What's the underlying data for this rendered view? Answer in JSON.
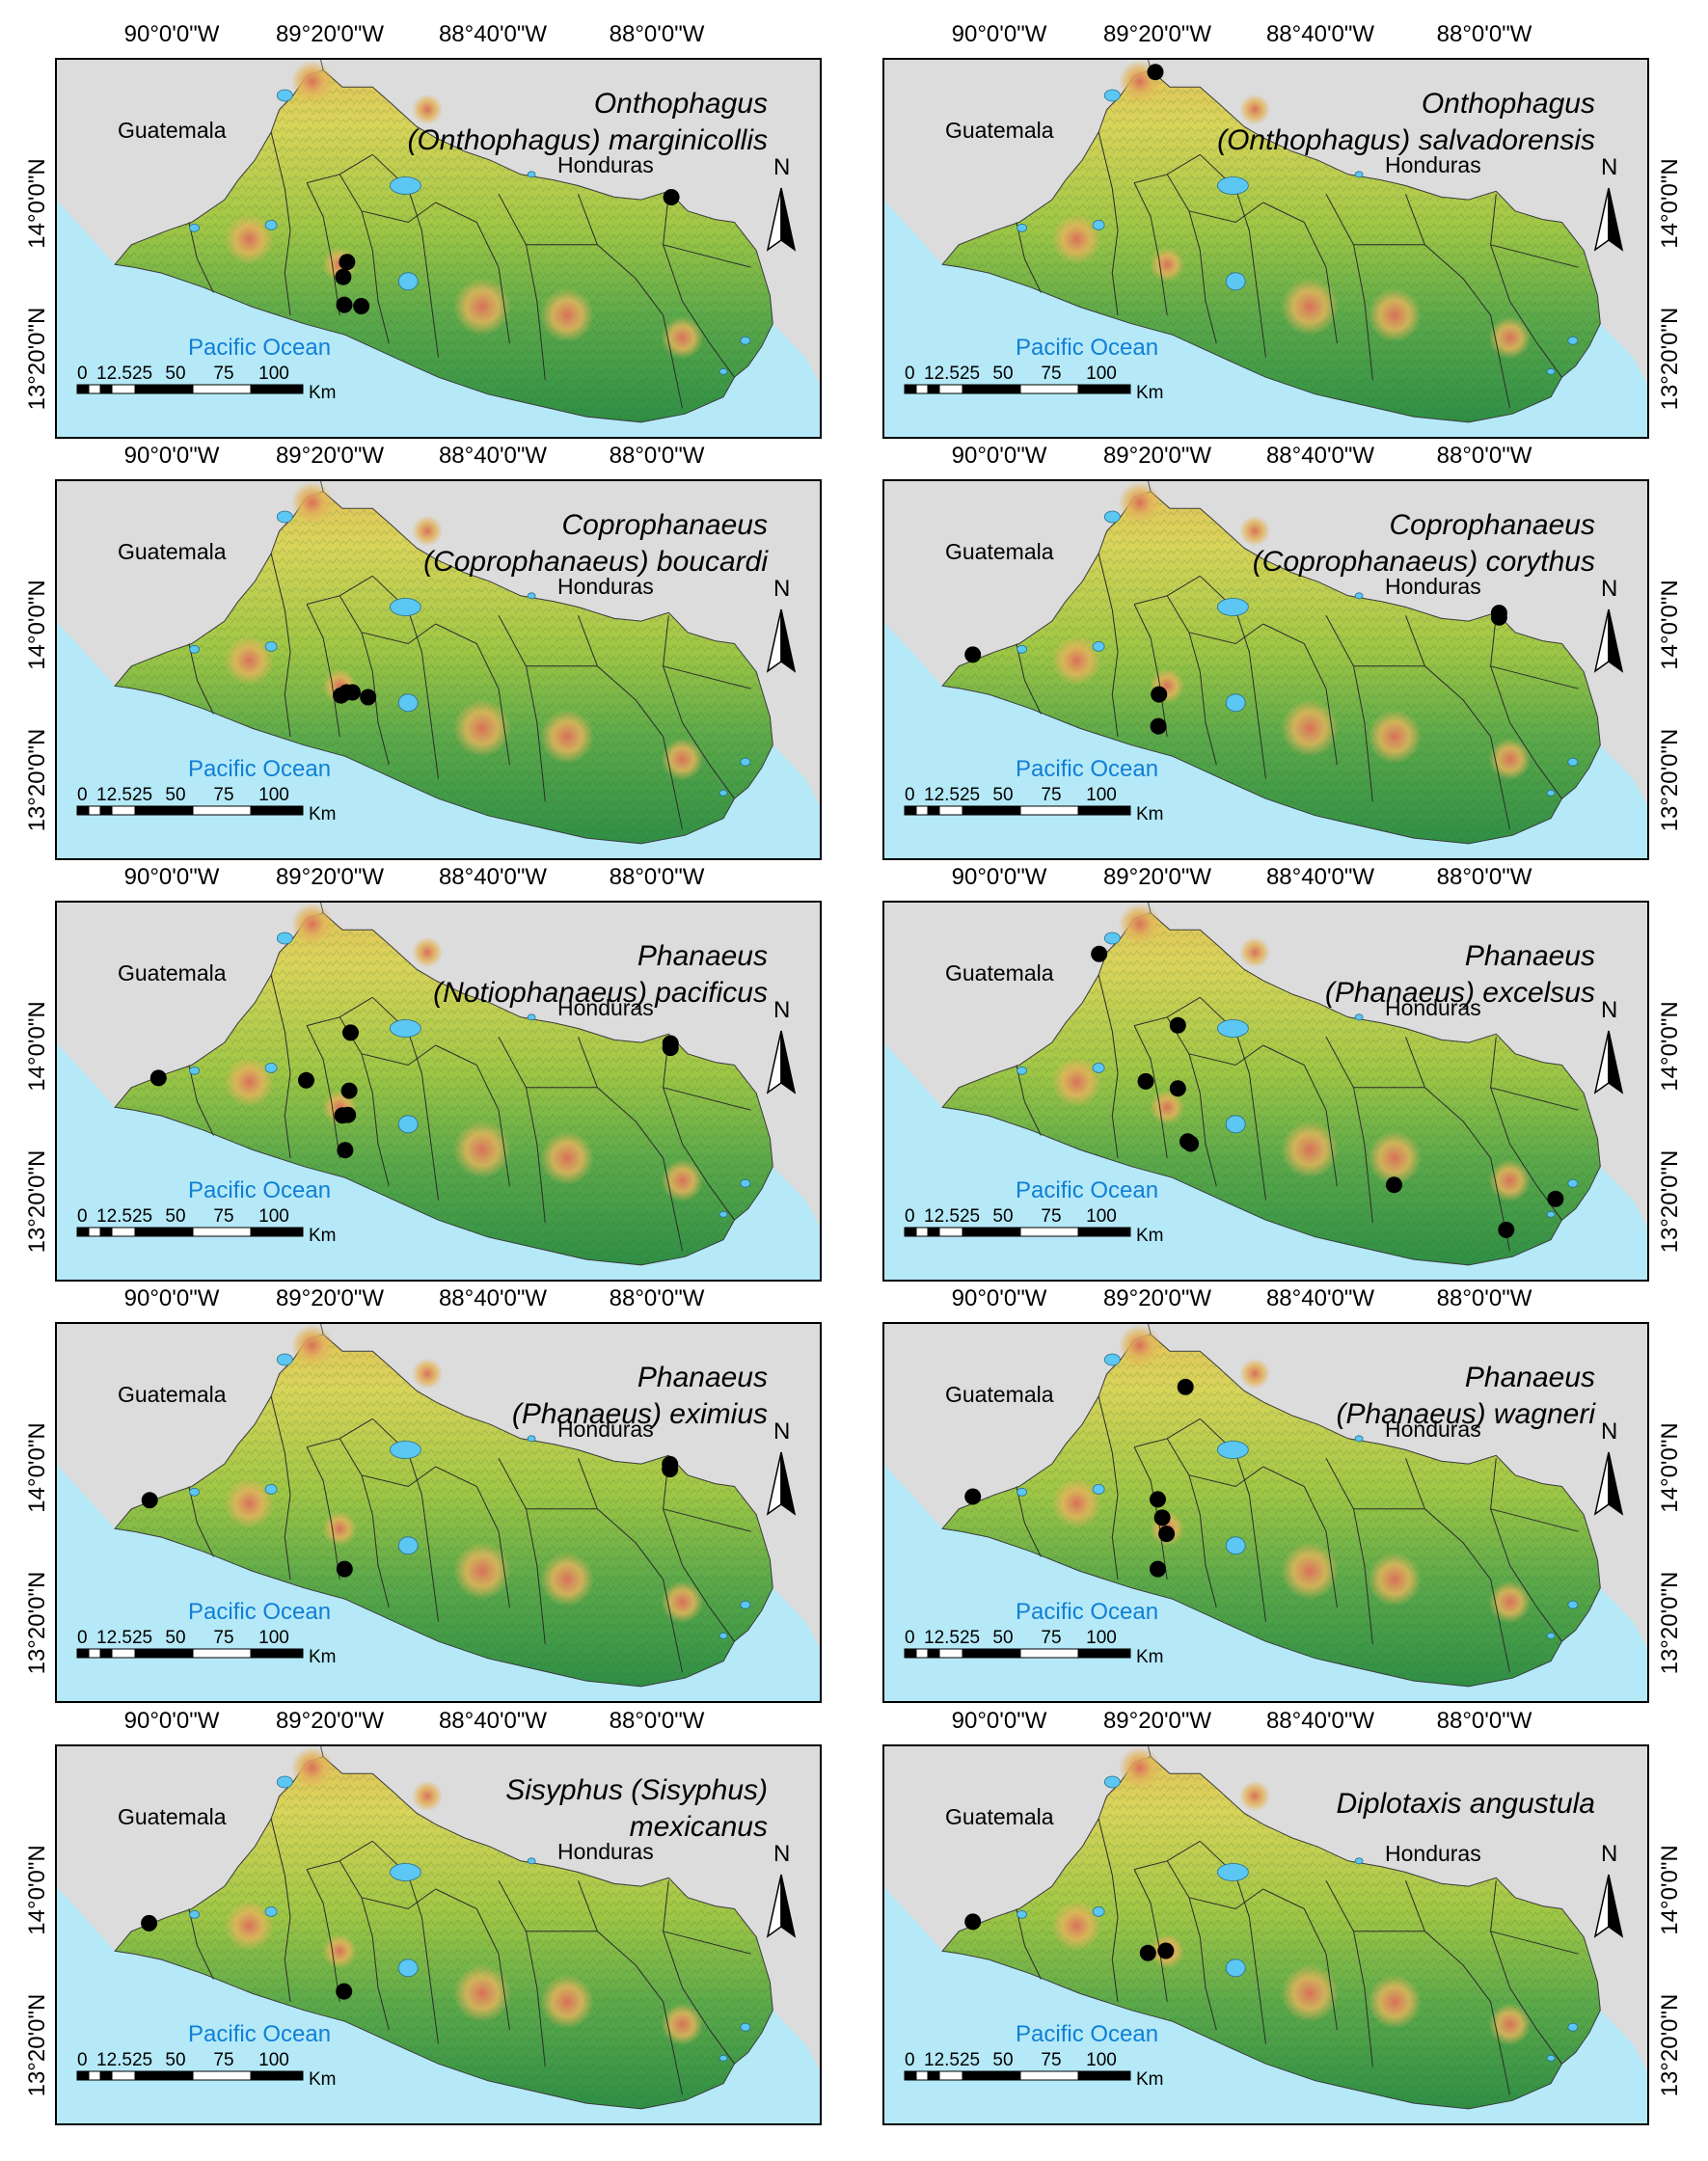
{
  "figure": {
    "lon_labels": [
      "90°0'0\"W",
      "89°20'0\"W",
      "88°40'0\"W",
      "88°0'0\"W"
    ],
    "lat_labels": [
      "14°0'0\"N",
      "13°20'0\"N"
    ],
    "country_guatemala": "Guatemala",
    "country_honduras": "Honduras",
    "ocean_label": "Pacific Ocean",
    "north_label": "N",
    "scale_labels": [
      "0",
      "12.525",
      "50",
      "75",
      "100"
    ],
    "scale_unit": "Km",
    "colors": {
      "ocean": "#b5e9f8",
      "land_outside": "#dcdcdc",
      "lowland": "#2f8f45",
      "midland": "#9fc645",
      "upland": "#d9d45a",
      "peaks": "#d8705a",
      "lakes": "#5bc7f2",
      "records": "#000000"
    }
  },
  "panels": [
    {
      "title_lines": [
        "Onthophagus",
        "(Onthophagus) marginicollis"
      ],
      "records": [
        {
          "lon": -89.273,
          "lat": 13.739
        },
        {
          "lon": -89.287,
          "lat": 13.686
        },
        {
          "lon": -89.283,
          "lat": 13.587
        },
        {
          "lon": -89.221,
          "lat": 13.582
        },
        {
          "lon": -88.09,
          "lat": 13.969
        }
      ]
    },
    {
      "title_lines": [
        "Onthophagus",
        "(Onthophagus) salvadorensis"
      ],
      "records": [
        {
          "lon": -89.343,
          "lat": 14.413
        }
      ]
    },
    {
      "title_lines": [
        "Coprophanaeus",
        "(Coprophanaeus) boucardi"
      ],
      "records": [
        {
          "lon": -89.295,
          "lat": 13.696
        },
        {
          "lon": -89.275,
          "lat": 13.707
        },
        {
          "lon": -89.253,
          "lat": 13.707
        },
        {
          "lon": -89.196,
          "lat": 13.69
        }
      ]
    },
    {
      "title_lines": [
        "Coprophanaeus",
        "(Coprophanaeus) corythus"
      ],
      "records": [
        {
          "lon": -90.009,
          "lat": 13.841
        },
        {
          "lon": -89.33,
          "lat": 13.7
        },
        {
          "lon": -89.332,
          "lat": 13.587
        },
        {
          "lon": -88.089,
          "lat": 13.973
        },
        {
          "lon": -88.089,
          "lat": 13.989
        }
      ]
    },
    {
      "title_lines": [
        "Phanaeus",
        "(Notiophanaeus) pacificus"
      ],
      "records": [
        {
          "lon": -89.961,
          "lat": 13.834
        },
        {
          "lon": -89.422,
          "lat": 13.826
        },
        {
          "lon": -89.26,
          "lat": 13.995
        },
        {
          "lon": -89.29,
          "lat": 13.701
        },
        {
          "lon": -89.27,
          "lat": 13.703
        },
        {
          "lon": -89.265,
          "lat": 13.789
        },
        {
          "lon": -89.28,
          "lat": 13.578
        },
        {
          "lon": -88.093,
          "lat": 13.957
        },
        {
          "lon": -88.093,
          "lat": 13.941
        }
      ]
    },
    {
      "title_lines": [
        "Phanaeus",
        "(Phanaeus) excelsus"
      ],
      "records": [
        {
          "lon": -89.548,
          "lat": 14.274
        },
        {
          "lon": -89.261,
          "lat": 14.021
        },
        {
          "lon": -89.378,
          "lat": 13.822
        },
        {
          "lon": -89.261,
          "lat": 13.797
        },
        {
          "lon": -89.225,
          "lat": 13.609
        },
        {
          "lon": -89.214,
          "lat": 13.601
        },
        {
          "lon": -88.472,
          "lat": 13.455
        },
        {
          "lon": -88.063,
          "lat": 13.295
        },
        {
          "lon": -87.883,
          "lat": 13.405
        }
      ]
    },
    {
      "title_lines": [
        "Phanaeus",
        "(Phanaeus) eximius"
      ],
      "records": [
        {
          "lon": -89.993,
          "lat": 13.831
        },
        {
          "lon": -89.282,
          "lat": 13.587
        },
        {
          "lon": -88.095,
          "lat": 13.941
        },
        {
          "lon": -88.095,
          "lat": 13.959
        }
      ]
    },
    {
      "title_lines": [
        "Phanaeus",
        "(Phanaeus) wagneri"
      ],
      "records": [
        {
          "lon": -89.233,
          "lat": 14.233
        },
        {
          "lon": -90.009,
          "lat": 13.844
        },
        {
          "lon": -89.334,
          "lat": 13.834
        },
        {
          "lon": -89.318,
          "lat": 13.769
        },
        {
          "lon": -89.302,
          "lat": 13.712
        },
        {
          "lon": -89.334,
          "lat": 13.587
        }
      ]
    },
    {
      "title_lines": [
        "Sisyphus (Sisyphus)",
        "mexicanus"
      ],
      "records": [
        {
          "lon": -89.995,
          "lat": 13.829
        },
        {
          "lon": -89.284,
          "lat": 13.587
        }
      ]
    },
    {
      "title_lines": [
        "Diplotaxis angustula"
      ],
      "records": [
        {
          "lon": -90.009,
          "lat": 13.834
        },
        {
          "lon": -89.37,
          "lat": 13.723
        },
        {
          "lon": -89.305,
          "lat": 13.731
        }
      ]
    }
  ]
}
